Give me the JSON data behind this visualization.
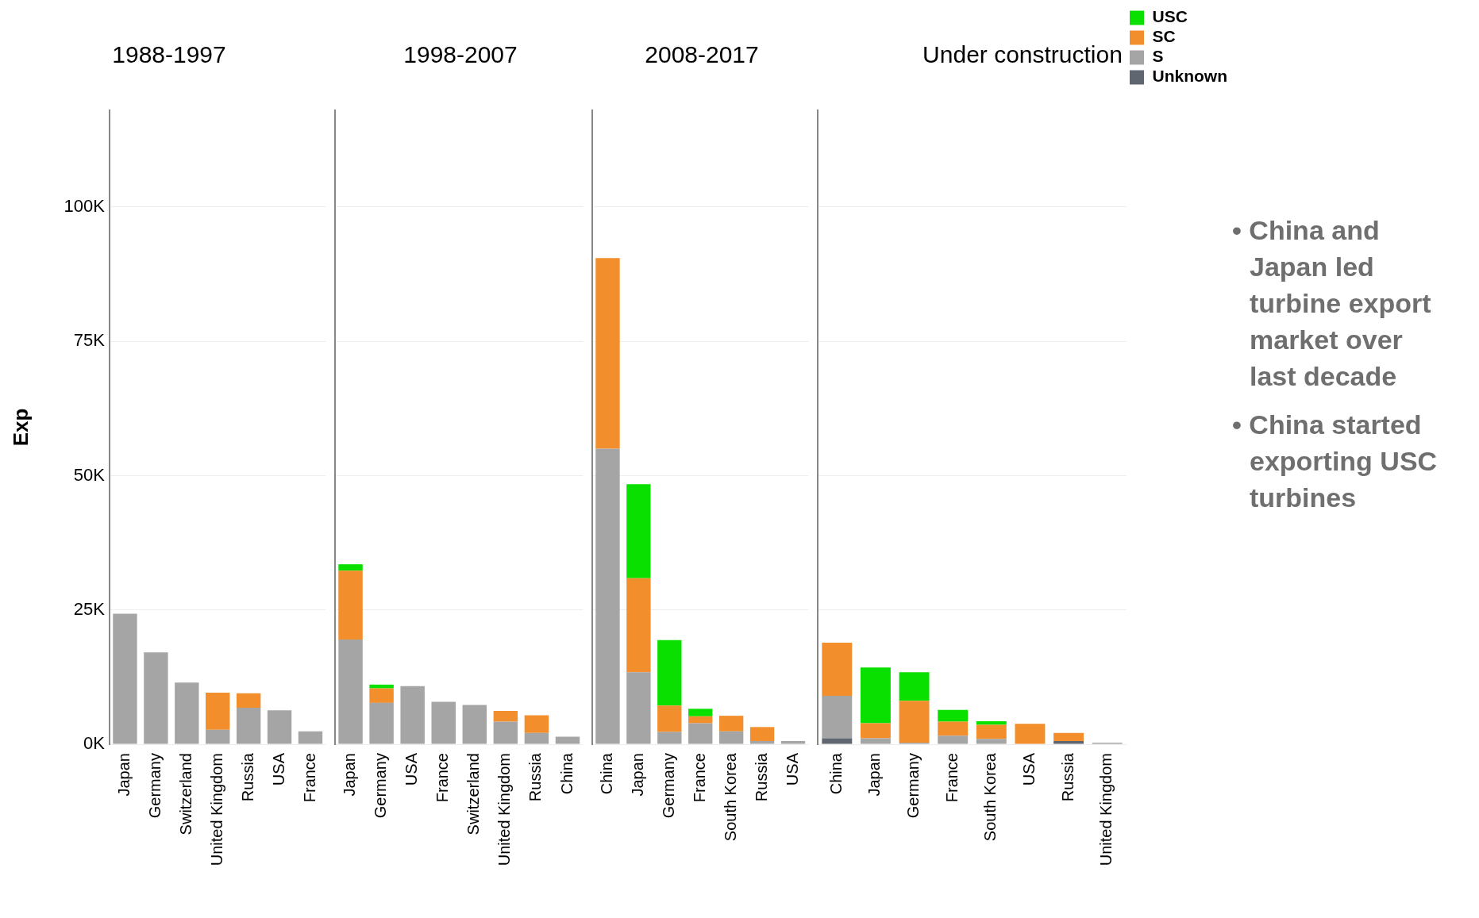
{
  "chart_data": [
    {
      "type": "bar",
      "title": "1988-1997",
      "ylabel": "Exp",
      "stacked": true,
      "grid": "y",
      "categories": [
        "Japan",
        "Germany",
        "Switzerland",
        "United Kingdom",
        "Russia",
        "USA",
        "France"
      ],
      "ylim": [
        0,
        118000
      ],
      "yticks": [
        {
          "value": 0,
          "label": "0K"
        },
        {
          "value": 25000,
          "label": "25K"
        },
        {
          "value": 50000,
          "label": "50K"
        },
        {
          "value": 75000,
          "label": "75K"
        },
        {
          "value": 100000,
          "label": "100K"
        }
      ],
      "series": [
        {
          "color": "#a5a5a5",
          "values": [
            24300,
            17100,
            11500,
            2700,
            6800,
            6300,
            2400
          ]
        },
        {
          "color": "#f28e2b",
          "values": [
            null,
            null,
            null,
            6900,
            2700,
            null,
            null
          ]
        }
      ]
    },
    {
      "type": "bar",
      "title": "1998-2007",
      "stacked": true,
      "grid": "y",
      "tick_labels": "x",
      "categories": [
        "Japan",
        "Germany",
        "USA",
        "France",
        "Switzerland",
        "United Kingdom",
        "Russia",
        "China"
      ],
      "ylim": [
        0,
        118000
      ],
      "yticks": [
        {
          "value": 0,
          "label": null
        },
        {
          "value": 25000,
          "label": null
        },
        {
          "value": 50000,
          "label": null
        },
        {
          "value": 75000,
          "label": null
        },
        {
          "value": 100000,
          "label": null
        }
      ],
      "series": [
        {
          "color": "#a5a5a5",
          "values": [
            19500,
            7700,
            10800,
            7900,
            7300,
            4200,
            2100,
            1400
          ]
        },
        {
          "color": "#f28e2b",
          "values": [
            12800,
            2700,
            null,
            null,
            null,
            2000,
            3300,
            null
          ]
        },
        {
          "color": "#0ae000",
          "values": [
            1200,
            700,
            null,
            null,
            null,
            null,
            null,
            null
          ]
        }
      ]
    },
    {
      "type": "bar",
      "title": "2008-2017",
      "stacked": true,
      "grid": "y",
      "tick_labels": "x",
      "categories": [
        "China",
        "Japan",
        "Germany",
        "France",
        "South Korea",
        "Russia",
        "USA"
      ],
      "ylim": [
        0,
        118000
      ],
      "yticks": [
        {
          "value": 0,
          "label": null
        },
        {
          "value": 25000,
          "label": null
        },
        {
          "value": 50000,
          "label": null
        },
        {
          "value": 75000,
          "label": null
        },
        {
          "value": 100000,
          "label": null
        }
      ],
      "series": [
        {
          "color": "#a5a5a5",
          "values": [
            55000,
            13400,
            2300,
            3900,
            2400,
            600,
            600
          ]
        },
        {
          "color": "#f28e2b",
          "values": [
            35500,
            17500,
            4900,
            1300,
            2900,
            2600,
            null
          ]
        },
        {
          "color": "#0ae000",
          "values": [
            null,
            17500,
            12200,
            1400,
            null,
            null,
            null
          ]
        }
      ]
    },
    {
      "type": "bar",
      "title": "Under construction",
      "stacked": true,
      "grid": "y",
      "tick_labels": "x",
      "legend": "top right",
      "categories": [
        "China",
        "Japan",
        "Germany",
        "France",
        "South Korea",
        "USA",
        "Russia",
        "United Kingdom"
      ],
      "ylim": [
        0,
        118000
      ],
      "yticks": [
        {
          "value": 0,
          "label": null
        },
        {
          "value": 25000,
          "label": null
        },
        {
          "value": 50000,
          "label": null
        },
        {
          "value": 75000,
          "label": null
        },
        {
          "value": 100000,
          "label": null
        }
      ],
      "series": [
        {
          "name": "Unknown",
          "color": "#5f6670",
          "values": [
            1100,
            null,
            null,
            null,
            null,
            null,
            600,
            null
          ]
        },
        {
          "name": "S",
          "color": "#a5a5a5",
          "values": [
            7900,
            1100,
            300,
            1600,
            1000,
            null,
            null,
            300
          ]
        },
        {
          "name": "SC",
          "color": "#f28e2b",
          "values": [
            9900,
            2800,
            7800,
            2600,
            2600,
            3800,
            1500,
            null
          ]
        },
        {
          "name": "USC",
          "color": "#0ae000",
          "values": [
            null,
            10400,
            5300,
            2200,
            700,
            null,
            null,
            null
          ]
        }
      ]
    },
    {
      "type": "other",
      "annotations": [
        "• China and Japan led turbine export market over last decade",
        "• China started exporting USC turbines"
      ]
    }
  ]
}
